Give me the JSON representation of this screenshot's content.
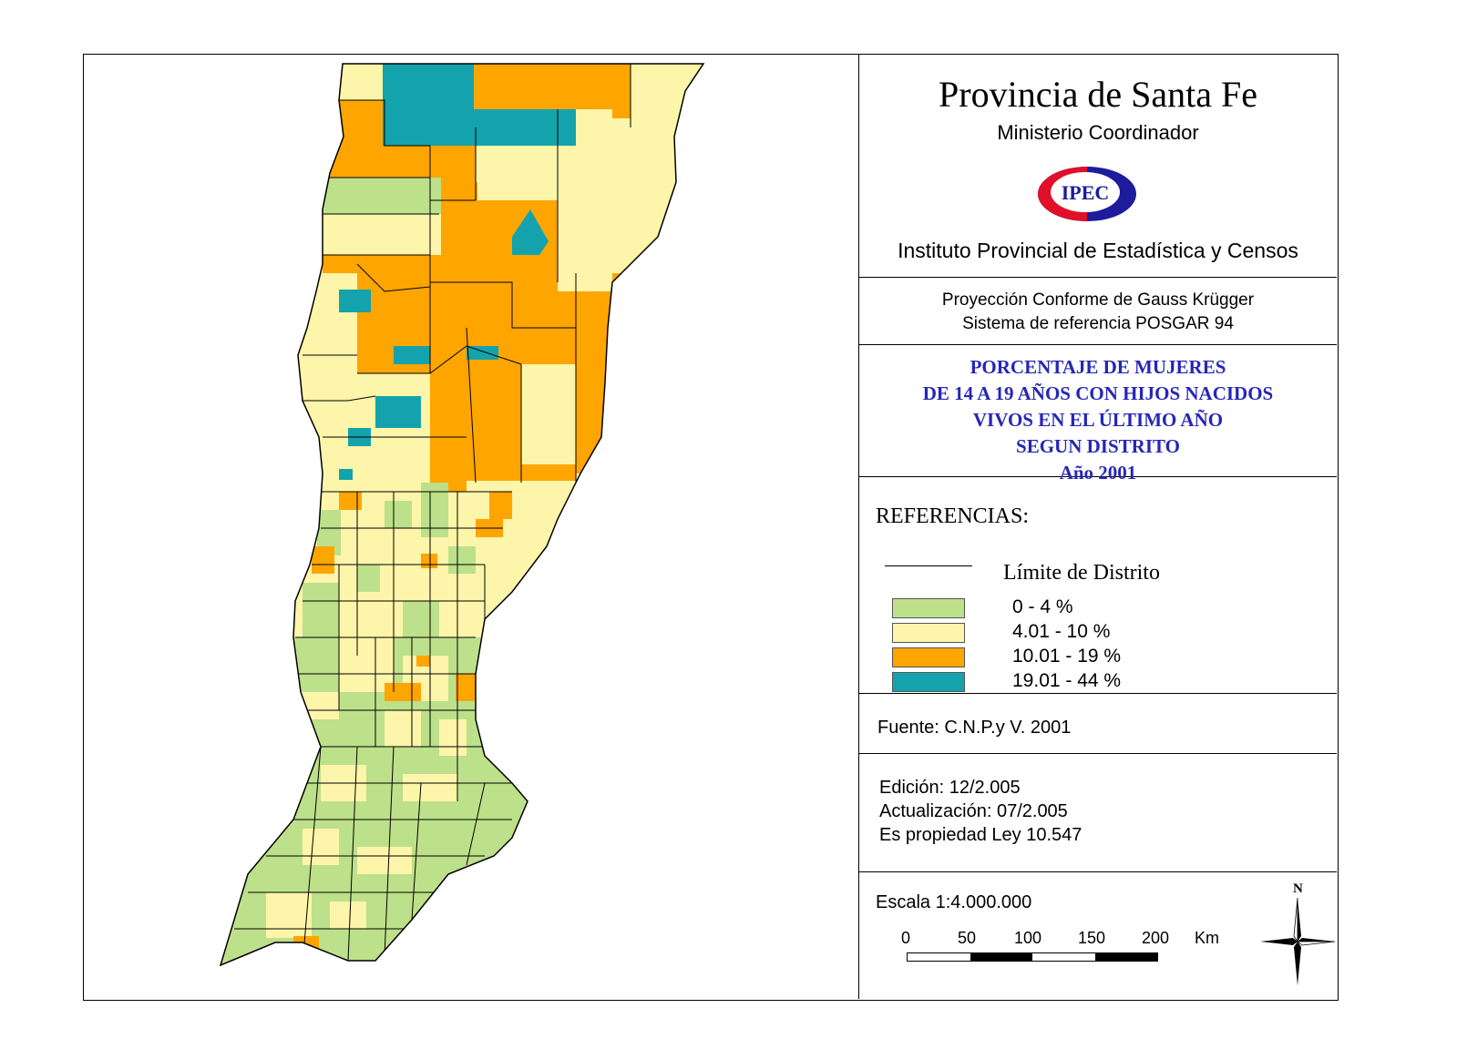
{
  "header": {
    "title": "Provincia de Santa Fe",
    "ministry": "Ministerio Coordinador",
    "logo_text": "IPEC",
    "institute": "Instituto Provincial de Estadística y Censos"
  },
  "projection": {
    "line1": "Proyección Conforme de Gauss Krügger",
    "line2": "Sistema de referencia POSGAR 94"
  },
  "theme": {
    "line1": "PORCENTAJE DE MUJERES",
    "line2": "DE 14 A 19 AÑOS CON HIJOS NACIDOS",
    "line3": "VIVOS EN EL ÚLTIMO AÑO",
    "line4": "SEGUN DISTRITO",
    "year": "Año 2001"
  },
  "legend": {
    "heading": "REFERENCIAS:",
    "boundary_label": "Límite de Distrito",
    "classes": [
      {
        "label": "0 - 4 %",
        "color": "#bde08a"
      },
      {
        "label": "4.01 - 10 %",
        "color": "#fdf5a9"
      },
      {
        "label": "10.01 - 19 %",
        "color": "#ffa500"
      },
      {
        "label": "19.01 -  44 %",
        "color": "#14a3ad"
      }
    ]
  },
  "source": {
    "text": "Fuente:  C.N.P.y V. 2001"
  },
  "edition": {
    "line1": "Edición:  12/2.005",
    "line2": "Actualización:  07/2.005",
    "line3": "Es propiedad Ley 10.547"
  },
  "scale": {
    "label": "Escala 1:4.000.000",
    "ticks": [
      "0",
      "50",
      "100",
      "150",
      "200"
    ],
    "unit": "Km"
  },
  "north_arrow": {
    "label": "N"
  },
  "colors": {
    "logo_red": "#e0102a",
    "logo_blue": "#1c1c9c",
    "boundary": "#000000"
  }
}
